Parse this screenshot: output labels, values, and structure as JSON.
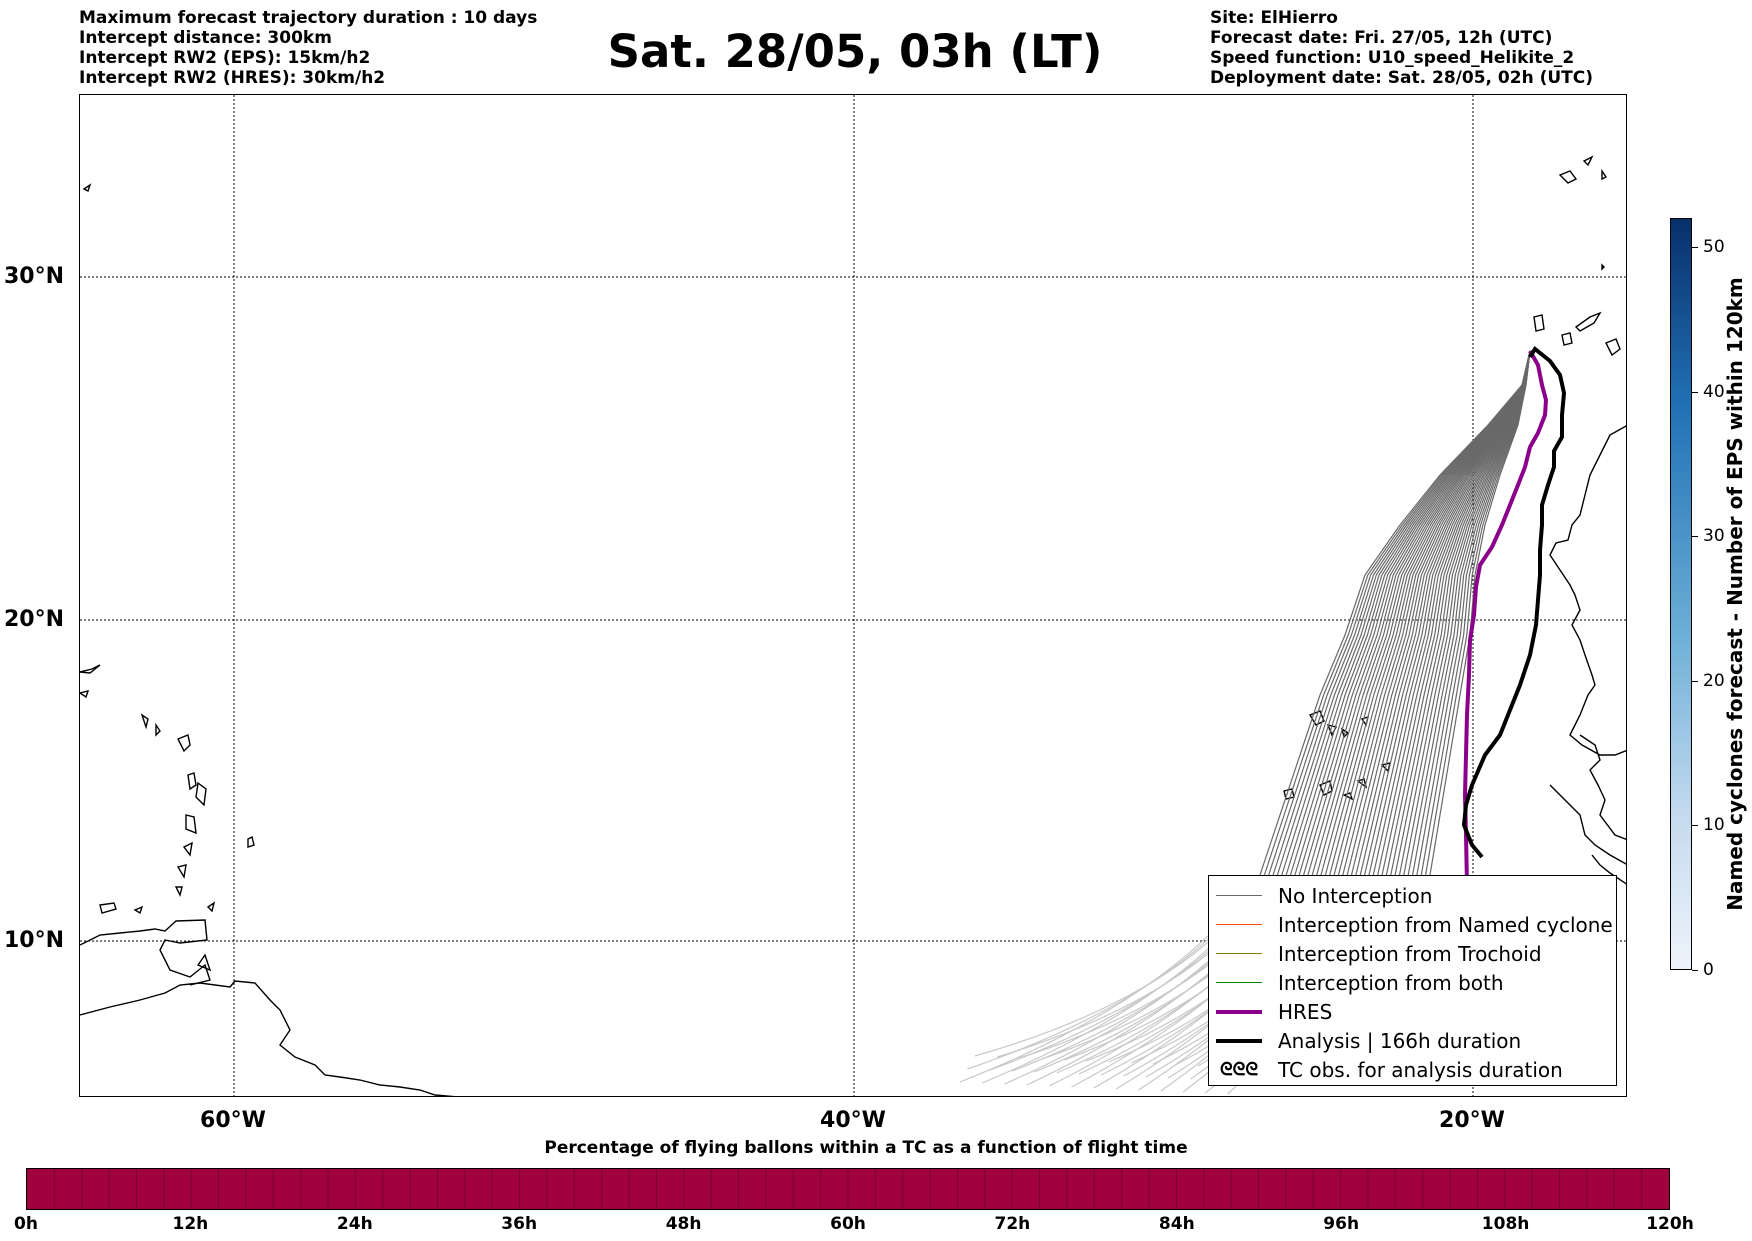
{
  "header": {
    "left_lines": [
      "Maximum forecast trajectory duration : 10 days",
      "Intercept distance: 300km",
      "Intercept RW2 (EPS):  15km/h2",
      "Intercept RW2 (HRES): 30km/h2"
    ],
    "title": "Sat. 28/05, 03h (LT)",
    "right_lines": [
      "Site: ElHierro",
      "Forecast date: Fri. 27/05, 12h (UTC)",
      "Speed function: U10_speed_Helikite_2",
      "Deployment date: Sat. 28/05, 02h (UTC)"
    ]
  },
  "map": {
    "lat_labels": [
      "30°N",
      "20°N",
      "10°N"
    ],
    "lon_labels": [
      "60°W",
      "40°W",
      "20°W"
    ],
    "colors": {
      "no_interception": "#696969",
      "no_interception_faded": "#c8c8c8",
      "named_cyclone": "#ff4500",
      "trochoid": "#808000",
      "both": "#008000",
      "hres": "#8b008b",
      "analysis": "#000000"
    }
  },
  "legend": {
    "items": [
      {
        "label": "No Interception",
        "style": "no_interception"
      },
      {
        "label": "Interception from Named cyclone",
        "style": "named_cyclone"
      },
      {
        "label": "Interception from Trochoid",
        "style": "trochoid"
      },
      {
        "label": "Interception from both",
        "style": "both"
      },
      {
        "label": "HRES",
        "style": "hres"
      },
      {
        "label": "Analysis | 166h duration",
        "style": "analysis"
      },
      {
        "label": "TC obs. for analysis duration",
        "style": "tc_obs"
      }
    ]
  },
  "colorbar": {
    "title": "Named cyclones forecast - Number of EPS within 120km",
    "ticks": [
      "0",
      "10",
      "20",
      "30",
      "40",
      "50"
    ],
    "max": 52
  },
  "percentage_bar": {
    "title": "Percentage of flying ballons within a TC as a function of flight time",
    "ticks": [
      "0h",
      "12h",
      "24h",
      "36h",
      "48h",
      "60h",
      "72h",
      "84h",
      "96h",
      "108h",
      "120h"
    ],
    "color": "#a0003e"
  }
}
